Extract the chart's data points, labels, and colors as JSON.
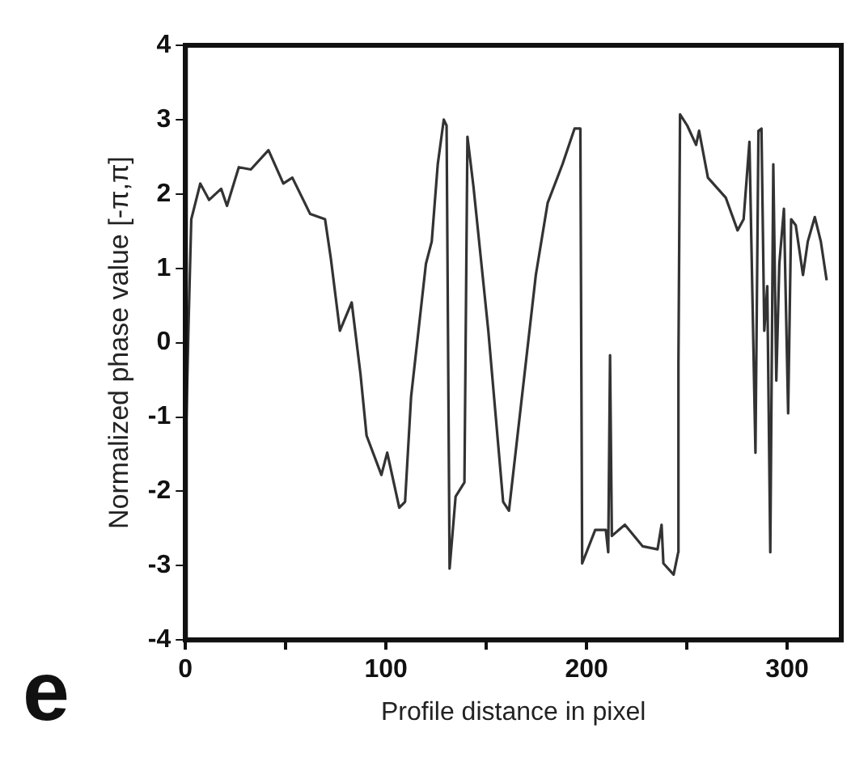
{
  "chart_data": {
    "type": "line",
    "xlabel": "Profile distance in pixel",
    "ylabel": "Normalized phase value [-π,π]",
    "annotations": [
      "e"
    ],
    "xlim": [
      0,
      327
    ],
    "ylim": [
      -4,
      4
    ],
    "xticks": [
      0,
      {
        "value": 50,
        "label": null
      },
      100,
      {
        "value": 150,
        "label": null
      },
      200,
      {
        "value": 250,
        "label": null
      },
      300
    ],
    "yticks": [
      -4,
      -3,
      -2,
      -1,
      0,
      1,
      2,
      3,
      4
    ],
    "grid": false,
    "legend": false,
    "marker": "none",
    "line_style": "solid",
    "series": [
      {
        "color": "#333333",
        "x": [
          0,
          0.5,
          1.5,
          2.9,
          7.4,
          11.8,
          17.8,
          20.7,
          26.6,
          32.6,
          41.4,
          48.8,
          53.3,
          62.2,
          69.6,
          72.5,
          77,
          82.9,
          87.3,
          90.3,
          97.7,
          100.6,
          106.6,
          109.5,
          112.5,
          119.9,
          122.8,
          125.8,
          128.8,
          130.2,
          131.7,
          134.7,
          139.1,
          140.6,
          143.6,
          151,
          158.4,
          161.3,
          174.7,
          180.6,
          188,
          194,
          196.9,
          197.8,
          204.3,
          209.6,
          210.8,
          211.7,
          212.6,
          219.1,
          228,
          235.4,
          237.4,
          238.3,
          243.4,
          245.7,
          245.8,
          246.6,
          250.2,
          254.6,
          256.1,
          260.5,
          269.4,
          275.3,
          278.3,
          281.2,
          284.2,
          285.7,
          287.2,
          288.6,
          290.1,
          291.6,
          293.1,
          294.6,
          296.1,
          298.4,
          300.5,
          302,
          304.3,
          307.9,
          310.3,
          313.8,
          316.8,
          319.7
        ],
        "values": [
          -0.2,
          -1.0,
          0.2,
          1.66,
          2.14,
          1.92,
          2.07,
          1.84,
          2.36,
          2.33,
          2.59,
          2.14,
          2.22,
          1.73,
          1.66,
          1.13,
          0.16,
          0.54,
          -0.43,
          -1.25,
          -1.78,
          -1.48,
          -2.22,
          -2.14,
          -0.73,
          1.06,
          1.36,
          2.4,
          3.0,
          2.92,
          -3.04,
          -2.07,
          -1.88,
          2.77,
          2.1,
          0.16,
          -2.14,
          -2.26,
          0.91,
          1.88,
          2.4,
          2.88,
          2.88,
          -2.97,
          -2.52,
          -2.52,
          -2.82,
          -0.17,
          -2.6,
          -2.45,
          -2.74,
          -2.78,
          -2.45,
          -2.97,
          -3.12,
          -2.82,
          -0.28,
          3.07,
          2.92,
          2.66,
          2.85,
          2.22,
          1.95,
          1.51,
          1.66,
          2.7,
          -1.48,
          2.85,
          2.88,
          0.16,
          0.76,
          -2.82,
          2.4,
          -0.51,
          1.06,
          1.8,
          -0.95,
          1.66,
          1.58,
          0.91,
          1.36,
          1.69,
          1.36,
          0.84
        ]
      }
    ]
  }
}
